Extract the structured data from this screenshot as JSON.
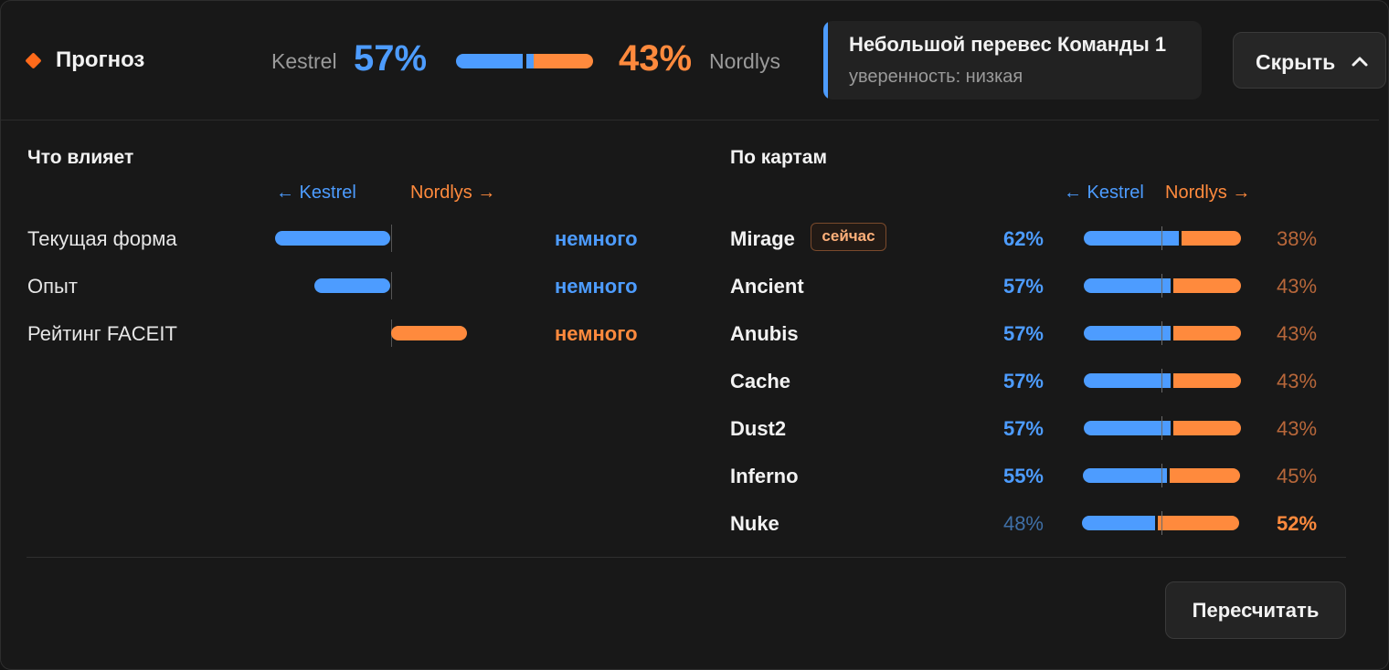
{
  "header": {
    "title": "Прогноз",
    "team_a": {
      "name": "Kestrel",
      "pct": "57%",
      "probability": 0.57
    },
    "team_b": {
      "name": "Nordlys",
      "pct": "43%",
      "probability": 0.43
    },
    "verdict": {
      "title": "Небольшой перевес Команды 1",
      "confidence": "уверенность: низкая"
    },
    "hide_button": {
      "label": "Скрыть",
      "icon": "chevron-up-icon"
    }
  },
  "factors": {
    "title": "Что влияет",
    "legend_a": "← Kestrel",
    "legend_b": "Nordlys →",
    "items": [
      {
        "name": "Текущая форма",
        "direction": "Kestrel",
        "strength": 1.0,
        "impact": "немного",
        "color": "#4d9cff"
      },
      {
        "name": "Опыт",
        "direction": "Kestrel",
        "strength": 0.66,
        "impact": "немного",
        "color": "#4d9cff"
      },
      {
        "name": "Рейтинг FACEIT",
        "direction": "Nordlys",
        "strength": 0.66,
        "impact": "немного",
        "color": "#ff8a3d"
      }
    ]
  },
  "maps": {
    "title": "По картам",
    "legend_a": "← Kestrel",
    "legend_b": "Nordlys →",
    "now_badge": "сейчас",
    "items": [
      {
        "name": "Mirage",
        "a": "62%",
        "b": "38%",
        "a_val": 62,
        "b_val": 38,
        "current": true
      },
      {
        "name": "Ancient",
        "a": "57%",
        "b": "43%",
        "a_val": 57,
        "b_val": 43,
        "current": false
      },
      {
        "name": "Anubis",
        "a": "57%",
        "b": "43%",
        "a_val": 57,
        "b_val": 43,
        "current": false
      },
      {
        "name": "Cache",
        "a": "57%",
        "b": "43%",
        "a_val": 57,
        "b_val": 43,
        "current": false
      },
      {
        "name": "Dust2",
        "a": "57%",
        "b": "43%",
        "a_val": 57,
        "b_val": 43,
        "current": false
      },
      {
        "name": "Inferno",
        "a": "55%",
        "b": "45%",
        "a_val": 55,
        "b_val": 45,
        "current": false
      },
      {
        "name": "Nuke",
        "a": "48%",
        "b": "52%",
        "a_val": 48,
        "b_val": 52,
        "current": false
      }
    ]
  },
  "actions": {
    "recalculate": "Пересчитать"
  },
  "colors": {
    "team_a": "#4d9cff",
    "team_b": "#ff8a3d",
    "accent": "#ff6a1a"
  }
}
